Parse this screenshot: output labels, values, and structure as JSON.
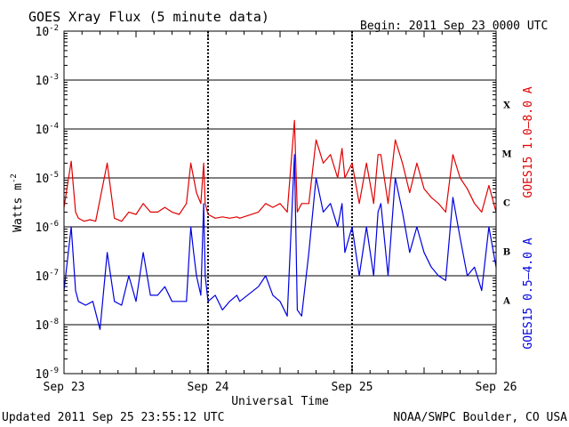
{
  "chart_data": {
    "type": "line",
    "title": "GOES Xray Flux (5 minute data)",
    "begin": "Begin:  2011 Sep 23 0000 UTC",
    "xlabel": "Universal Time",
    "ylabel": "Watts m",
    "ylabel_sup": "-2",
    "x_ticks": [
      "Sep 23",
      "Sep 24",
      "Sep 25",
      "Sep 26"
    ],
    "xlim": [
      0,
      3
    ],
    "y_scale": "log",
    "ylim": [
      1e-09,
      0.01
    ],
    "y_ticks": [
      {
        "exp": -9,
        "label": "10",
        "sup": "-9"
      },
      {
        "exp": -8,
        "label": "10",
        "sup": "-8"
      },
      {
        "exp": -7,
        "label": "10",
        "sup": "-7"
      },
      {
        "exp": -6,
        "label": "10",
        "sup": "-6"
      },
      {
        "exp": -5,
        "label": "10",
        "sup": "-5"
      },
      {
        "exp": -4,
        "label": "10",
        "sup": "-4"
      },
      {
        "exp": -3,
        "label": "10",
        "sup": "-3"
      },
      {
        "exp": -2,
        "label": "10",
        "sup": "-2"
      }
    ],
    "flare_classes": [
      {
        "label": "A",
        "exp": -7.5
      },
      {
        "label": "B",
        "exp": -6.5
      },
      {
        "label": "C",
        "exp": -5.5
      },
      {
        "label": "M",
        "exp": -4.5
      },
      {
        "label": "X",
        "exp": -3.5
      }
    ],
    "grid": "horizontal at each decade from 1e-8 to 1e-3",
    "series": [
      {
        "name": "GOES15 1.0–8.0 A",
        "color": "#e00000",
        "x": [
          0.0,
          0.05,
          0.08,
          0.1,
          0.12,
          0.14,
          0.18,
          0.22,
          0.3,
          0.35,
          0.4,
          0.45,
          0.5,
          0.55,
          0.6,
          0.65,
          0.7,
          0.75,
          0.8,
          0.85,
          0.88,
          0.9,
          0.92,
          0.95,
          0.97,
          0.98,
          1.0,
          1.05,
          1.1,
          1.15,
          1.2,
          1.22,
          1.35,
          1.4,
          1.45,
          1.5,
          1.55,
          1.6,
          1.62,
          1.65,
          1.7,
          1.75,
          1.8,
          1.85,
          1.9,
          1.93,
          1.95,
          2.0,
          2.05,
          2.1,
          2.15,
          2.18,
          2.2,
          2.25,
          2.3,
          2.35,
          2.4,
          2.45,
          2.5,
          2.55,
          2.6,
          2.65,
          2.7,
          2.75,
          2.8,
          2.85,
          2.9,
          2.95,
          3.0
        ],
        "y": [
          2.5e-06,
          2.2e-05,
          2e-06,
          1.5e-06,
          1.4e-06,
          1.3e-06,
          1.4e-06,
          1.3e-06,
          2e-05,
          1.5e-06,
          1.3e-06,
          2e-06,
          1.8e-06,
          3e-06,
          2e-06,
          2e-06,
          2.5e-06,
          2e-06,
          1.8e-06,
          3e-06,
          2e-05,
          1e-05,
          5e-06,
          3e-06,
          2e-05,
          3e-06,
          1.8e-06,
          1.5e-06,
          1.6e-06,
          1.5e-06,
          1.6e-06,
          1.5e-06,
          2e-06,
          3e-06,
          2.5e-06,
          3e-06,
          2e-06,
          0.00015,
          2e-06,
          3e-06,
          3e-06,
          6e-05,
          2e-05,
          3e-05,
          1e-05,
          4e-05,
          1e-05,
          2e-05,
          3e-06,
          2e-05,
          3e-06,
          3e-05,
          3e-05,
          3e-06,
          6e-05,
          2e-05,
          5e-06,
          2e-05,
          6e-06,
          4e-06,
          3e-06,
          2e-06,
          3e-05,
          1e-05,
          6e-06,
          3e-06,
          2e-06,
          7e-06,
          2e-06
        ]
      },
      {
        "name": "GOES15 0.5–4.0 A",
        "color": "#0000e0",
        "x": [
          0.0,
          0.05,
          0.08,
          0.1,
          0.15,
          0.2,
          0.25,
          0.3,
          0.35,
          0.4,
          0.45,
          0.5,
          0.55,
          0.6,
          0.65,
          0.7,
          0.75,
          0.8,
          0.85,
          0.88,
          0.9,
          0.92,
          0.95,
          0.97,
          0.98,
          1.0,
          1.05,
          1.1,
          1.15,
          1.2,
          1.22,
          1.35,
          1.4,
          1.45,
          1.5,
          1.55,
          1.6,
          1.62,
          1.65,
          1.7,
          1.75,
          1.8,
          1.85,
          1.9,
          1.93,
          1.95,
          2.0,
          2.05,
          2.1,
          2.15,
          2.18,
          2.2,
          2.25,
          2.3,
          2.35,
          2.4,
          2.45,
          2.5,
          2.55,
          2.6,
          2.65,
          2.7,
          2.75,
          2.8,
          2.85,
          2.9,
          2.95,
          3.0
        ],
        "y": [
          5e-08,
          1e-06,
          5e-08,
          3e-08,
          2.5e-08,
          3e-08,
          8e-09,
          3e-07,
          3e-08,
          2.5e-08,
          1e-07,
          3e-08,
          3e-07,
          4e-08,
          4e-08,
          6e-08,
          3e-08,
          3e-08,
          3e-08,
          1e-06,
          3e-07,
          1e-07,
          4e-08,
          3e-06,
          1e-07,
          3e-08,
          4e-08,
          2e-08,
          3e-08,
          4e-08,
          3e-08,
          6e-08,
          1e-07,
          4e-08,
          3e-08,
          1.5e-08,
          3e-05,
          2e-08,
          1.5e-08,
          3e-07,
          1e-05,
          2e-06,
          3e-06,
          1e-06,
          3e-06,
          3e-07,
          1e-06,
          1e-07,
          1e-06,
          1e-07,
          2e-06,
          3e-06,
          1e-07,
          1e-05,
          2e-06,
          3e-07,
          1e-06,
          3e-07,
          1.5e-07,
          1e-07,
          8e-08,
          4e-06,
          6e-07,
          1e-07,
          1.5e-07,
          5e-08,
          1e-06,
          1.5e-07
        ]
      }
    ]
  },
  "footer": {
    "updated": "Updated 2011 Sep 25 23:55:12 UTC",
    "credit": "NOAA/SWPC Boulder, CO USA"
  }
}
